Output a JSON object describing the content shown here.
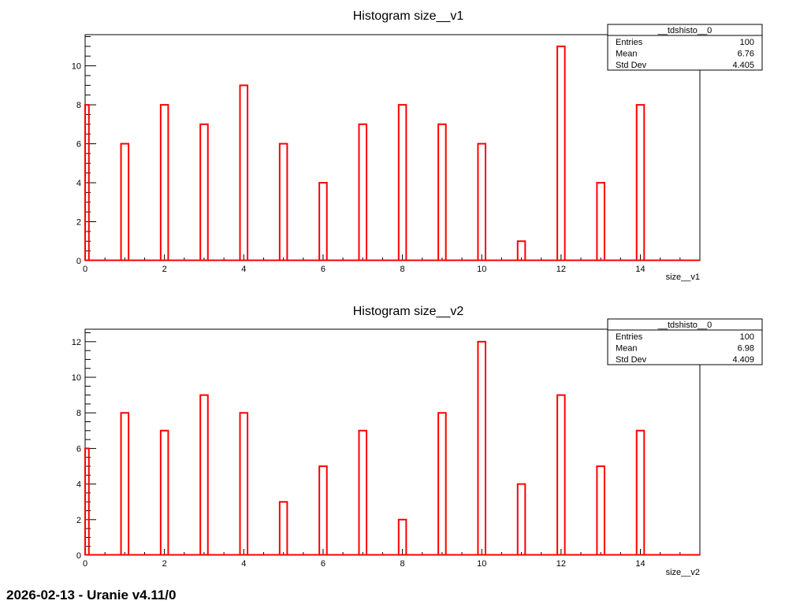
{
  "footer": "2026-02-13 - Uranie v4.11/0",
  "colors": {
    "line": "#ff0000",
    "axis": "#000000",
    "background": "#ffffff"
  },
  "chart_data": [
    {
      "type": "bar",
      "title": "Histogram size__v1",
      "xlabel": "size__v1",
      "ylabel": "",
      "xlim": [
        0,
        15.5
      ],
      "ylim": [
        0,
        11.6
      ],
      "xticks": [
        0,
        2,
        4,
        6,
        8,
        10,
        12,
        14
      ],
      "yticks": [
        0,
        2,
        4,
        6,
        8,
        10
      ],
      "x": [
        0,
        1,
        2,
        3,
        4,
        5,
        6,
        7,
        8,
        9,
        10,
        11,
        12,
        13,
        14
      ],
      "values": [
        8,
        6,
        8,
        7,
        9,
        6,
        4,
        7,
        8,
        7,
        6,
        1,
        11,
        4,
        8
      ],
      "stats": {
        "name": "__tdshisto__0",
        "rows": [
          {
            "label": "Entries",
            "value": "100"
          },
          {
            "label": "Mean",
            "value": "6.76"
          },
          {
            "label": "Std Dev",
            "value": "4.405"
          }
        ]
      }
    },
    {
      "type": "bar",
      "title": "Histogram size__v2",
      "xlabel": "size__v2",
      "ylabel": "",
      "xlim": [
        0,
        15.5
      ],
      "ylim": [
        0,
        12.7
      ],
      "xticks": [
        0,
        2,
        4,
        6,
        8,
        10,
        12,
        14
      ],
      "yticks": [
        0,
        2,
        4,
        6,
        8,
        10,
        12
      ],
      "x": [
        0,
        1,
        2,
        3,
        4,
        5,
        6,
        7,
        8,
        9,
        10,
        11,
        12,
        13,
        14
      ],
      "values": [
        6,
        8,
        7,
        9,
        8,
        3,
        5,
        7,
        2,
        8,
        12,
        4,
        9,
        5,
        7
      ],
      "stats": {
        "name": "__tdshisto__0",
        "rows": [
          {
            "label": "Entries",
            "value": "100"
          },
          {
            "label": "Mean",
            "value": "6.98"
          },
          {
            "label": "Std Dev",
            "value": "4.409"
          }
        ]
      }
    }
  ]
}
